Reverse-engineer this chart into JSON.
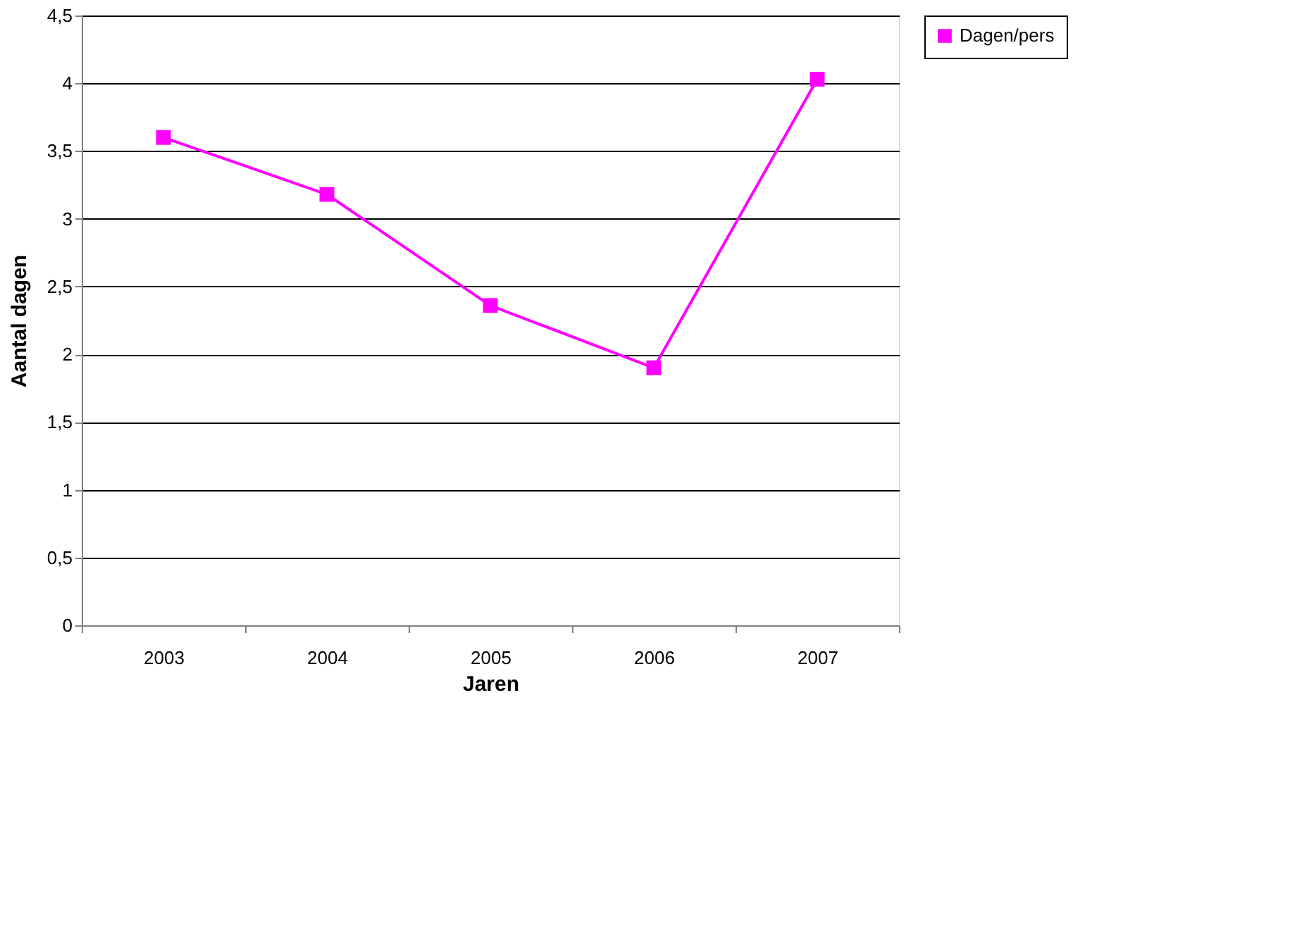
{
  "chart_data": {
    "type": "line",
    "xlabel": "Jaren",
    "ylabel": "Aantal dagen",
    "categories": [
      "2003",
      "2004",
      "2005",
      "2006",
      "2007"
    ],
    "series": [
      {
        "name": "Dagen/pers",
        "color": "#ff00ff",
        "values": [
          3.6,
          3.18,
          2.36,
          1.9,
          4.03
        ]
      }
    ],
    "ylim": [
      0,
      4.5
    ],
    "yticks": [
      0,
      {
        "value": 0.5,
        "label": "0,5"
      },
      1,
      {
        "value": 1.5,
        "label": "1,5"
      },
      2,
      {
        "value": 2.5,
        "label": "2,5"
      },
      3,
      {
        "value": 3.5,
        "label": "3,5"
      },
      4,
      {
        "value": 4.5,
        "label": "4,5"
      }
    ],
    "grid": "y",
    "legend": "right",
    "marker": "square",
    "line_style": "solid"
  }
}
